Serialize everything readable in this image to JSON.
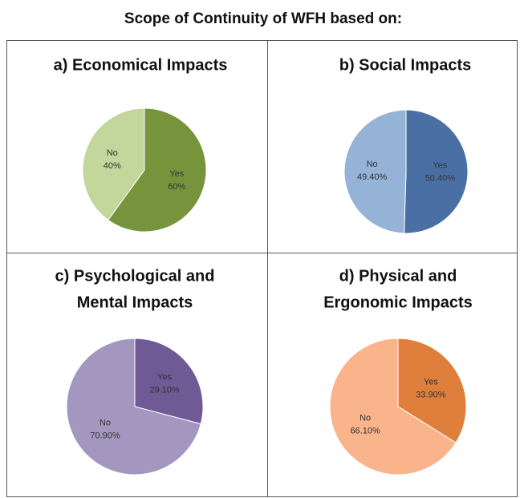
{
  "title": "Scope of Continuity of WFH based on:",
  "chart_data": [
    {
      "type": "pie",
      "title": [
        "a) Economical Impacts"
      ],
      "categories": [
        "Yes",
        "No"
      ],
      "values": [
        60,
        40
      ],
      "value_labels": [
        "60%",
        "40%"
      ],
      "colors": [
        "#77933c",
        "#c3d69b"
      ]
    },
    {
      "type": "pie",
      "title": [
        "b) Social Impacts"
      ],
      "categories": [
        "Yes",
        "No"
      ],
      "values": [
        50.4,
        49.4
      ],
      "value_labels": [
        "50.40%",
        "49.40%"
      ],
      "colors": [
        "#4a6fa5",
        "#95b3d7"
      ]
    },
    {
      "type": "pie",
      "title": [
        "c) Psychological and",
        "Mental Impacts"
      ],
      "categories": [
        "Yes",
        "No"
      ],
      "values": [
        29.1,
        70.9
      ],
      "value_labels": [
        "29.10%",
        "70.90%"
      ],
      "colors": [
        "#705a96",
        "#a397c0"
      ]
    },
    {
      "type": "pie",
      "title": [
        "d) Physical and",
        "Ergonomic Impacts"
      ],
      "categories": [
        "Yes",
        "No"
      ],
      "values": [
        33.9,
        66.1
      ],
      "value_labels": [
        "33.90%",
        "66.10%"
      ],
      "colors": [
        "#e07f3c",
        "#f9b48b"
      ]
    }
  ]
}
